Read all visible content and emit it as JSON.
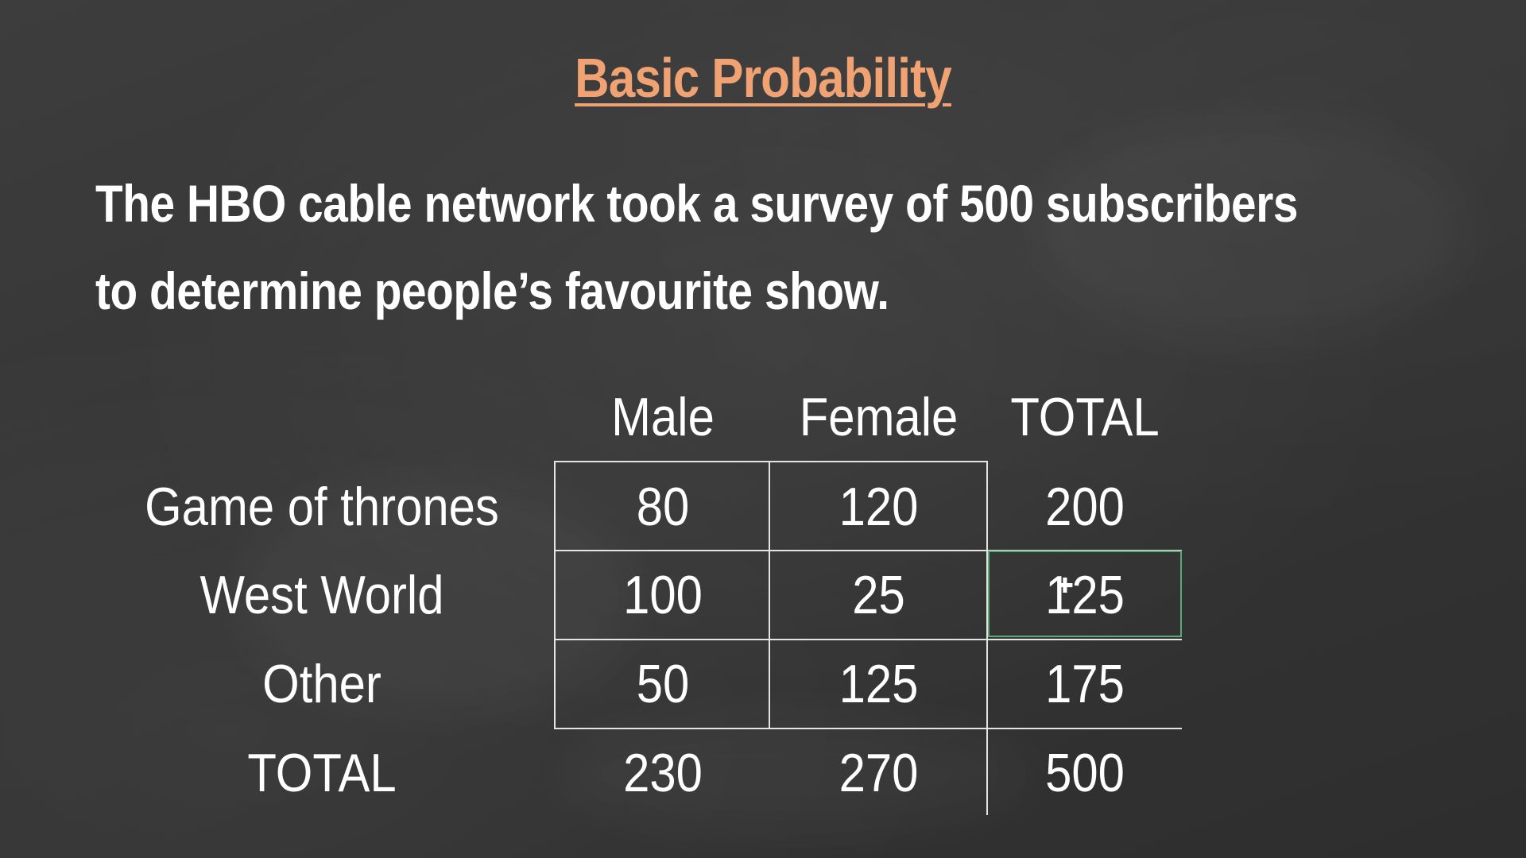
{
  "title": "Basic Probability",
  "description": {
    "line1": "The HBO cable network took a survey of 500 subscribers",
    "line2": "to determine people’s favourite show."
  },
  "table": {
    "column_headers": [
      "Male",
      "Female",
      "TOTAL"
    ],
    "rows": [
      {
        "label": "Game of thrones",
        "values": [
          "80",
          "120",
          "200"
        ]
      },
      {
        "label": "West World",
        "values": [
          "100",
          "25",
          "125"
        ]
      },
      {
        "label": "Other",
        "values": [
          "50",
          "125",
          "175"
        ]
      },
      {
        "label": "TOTAL",
        "values": [
          "230",
          "270",
          "500"
        ]
      }
    ]
  },
  "colors": {
    "background": "#363636",
    "title": "#f0a272",
    "text": "#ffffff",
    "grid": "#e4e4e4",
    "selection_border": "#5aa97c"
  },
  "icons": {
    "cursor": "move-cursor-icon"
  }
}
